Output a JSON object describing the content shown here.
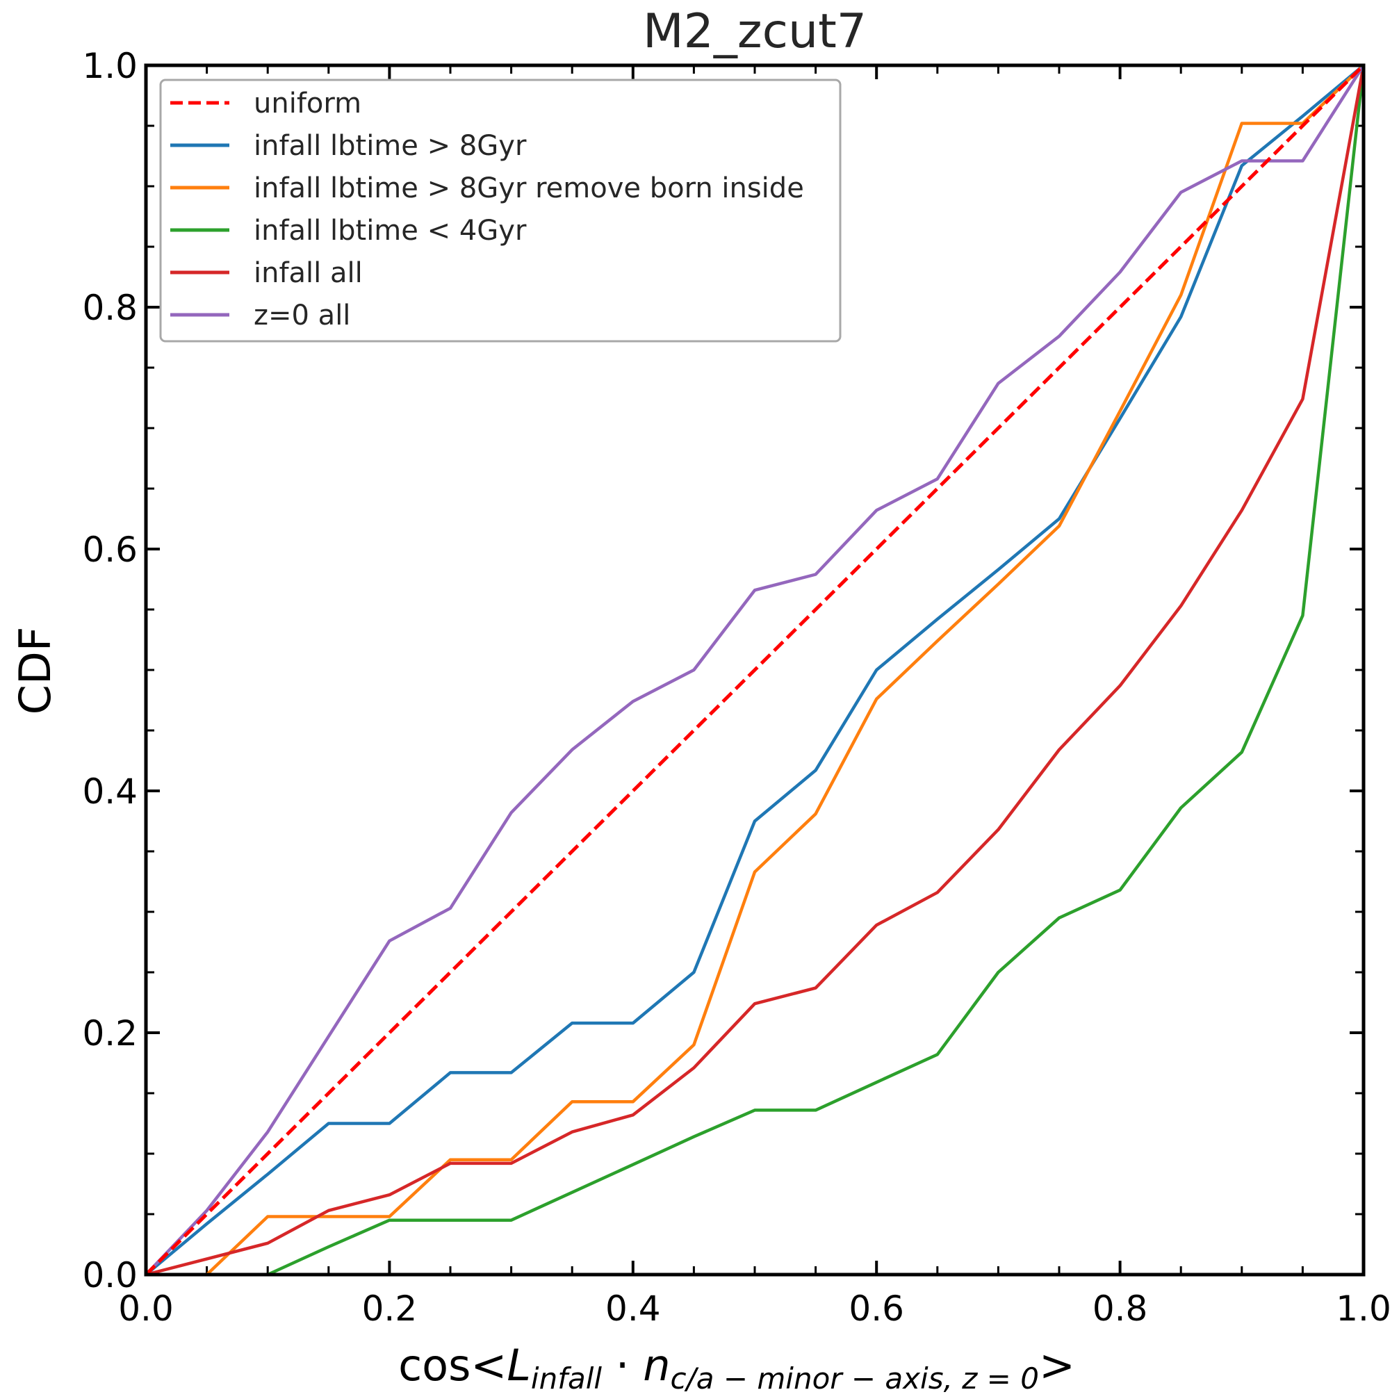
{
  "chart_data": {
    "type": "line",
    "title": "M2_zcut7",
    "xlabel": "",
    "ylabel": "CDF",
    "xlim": [
      0,
      1
    ],
    "ylim": [
      0,
      1
    ],
    "grid": false,
    "legend_position": "top-left",
    "x_ticks": [
      "0.0",
      "0.2",
      "0.4",
      "0.6",
      "0.8",
      "1.0"
    ],
    "y_ticks": [
      "0.0",
      "0.2",
      "0.4",
      "0.6",
      "0.8",
      "1.0"
    ],
    "series": [
      {
        "name": "uniform",
        "color": "#ff0000",
        "dashed": true,
        "x": [
          0,
          1
        ],
        "y": [
          0,
          1
        ]
      },
      {
        "name": "infall lbtime > 8Gyr",
        "color": "#1f77b4",
        "x": [
          0,
          0.05,
          0.1,
          0.15,
          0.2,
          0.25,
          0.3,
          0.35,
          0.4,
          0.45,
          0.5,
          0.55,
          0.6,
          0.65,
          0.7,
          0.75,
          0.8,
          0.85,
          0.9,
          0.95,
          1.0
        ],
        "y": [
          0,
          0.042,
          0.083,
          0.125,
          0.125,
          0.167,
          0.167,
          0.208,
          0.208,
          0.25,
          0.375,
          0.417,
          0.5,
          0.542,
          0.583,
          0.625,
          0.708,
          0.792,
          0.917,
          0.958,
          1.0
        ]
      },
      {
        "name": "infall lbtime > 8Gyr remove born inside",
        "color": "#ff7f0e",
        "x": [
          0,
          0.05,
          0.1,
          0.15,
          0.2,
          0.25,
          0.3,
          0.35,
          0.4,
          0.45,
          0.5,
          0.55,
          0.6,
          0.65,
          0.7,
          0.75,
          0.8,
          0.85,
          0.9,
          0.95,
          1.0
        ],
        "y": [
          0,
          0,
          0.048,
          0.048,
          0.048,
          0.095,
          0.095,
          0.143,
          0.143,
          0.19,
          0.333,
          0.381,
          0.476,
          0.524,
          0.571,
          0.619,
          0.714,
          0.81,
          0.952,
          0.952,
          1.0
        ]
      },
      {
        "name": "infall lbtime < 4Gyr",
        "color": "#2ca02c",
        "x": [
          0.1,
          0.15,
          0.2,
          0.25,
          0.3,
          0.35,
          0.4,
          0.45,
          0.5,
          0.55,
          0.6,
          0.65,
          0.7,
          0.75,
          0.8,
          0.85,
          0.9,
          0.95,
          1.0
        ],
        "y": [
          0,
          0.023,
          0.045,
          0.045,
          0.045,
          0.068,
          0.091,
          0.114,
          0.136,
          0.136,
          0.159,
          0.182,
          0.25,
          0.295,
          0.318,
          0.386,
          0.432,
          0.545,
          1.0
        ]
      },
      {
        "name": "infall all",
        "color": "#d62728",
        "x": [
          0,
          0.05,
          0.1,
          0.15,
          0.2,
          0.25,
          0.3,
          0.35,
          0.4,
          0.45,
          0.5,
          0.55,
          0.6,
          0.65,
          0.7,
          0.75,
          0.8,
          0.85,
          0.9,
          0.95,
          1.0
        ],
        "y": [
          0,
          0.013,
          0.026,
          0.053,
          0.066,
          0.092,
          0.092,
          0.118,
          0.132,
          0.171,
          0.224,
          0.237,
          0.289,
          0.316,
          0.368,
          0.434,
          0.487,
          0.553,
          0.632,
          0.724,
          1.0
        ]
      },
      {
        "name": "z=0 all",
        "color": "#9467bd",
        "x": [
          0,
          0.05,
          0.1,
          0.15,
          0.2,
          0.25,
          0.3,
          0.35,
          0.4,
          0.45,
          0.5,
          0.55,
          0.6,
          0.65,
          0.7,
          0.75,
          0.8,
          0.85,
          0.9,
          0.95,
          1.0
        ],
        "y": [
          0,
          0.053,
          0.118,
          0.197,
          0.276,
          0.303,
          0.382,
          0.434,
          0.474,
          0.5,
          0.566,
          0.579,
          0.632,
          0.658,
          0.737,
          0.776,
          0.829,
          0.895,
          0.921,
          0.921,
          1.0
        ]
      }
    ]
  }
}
